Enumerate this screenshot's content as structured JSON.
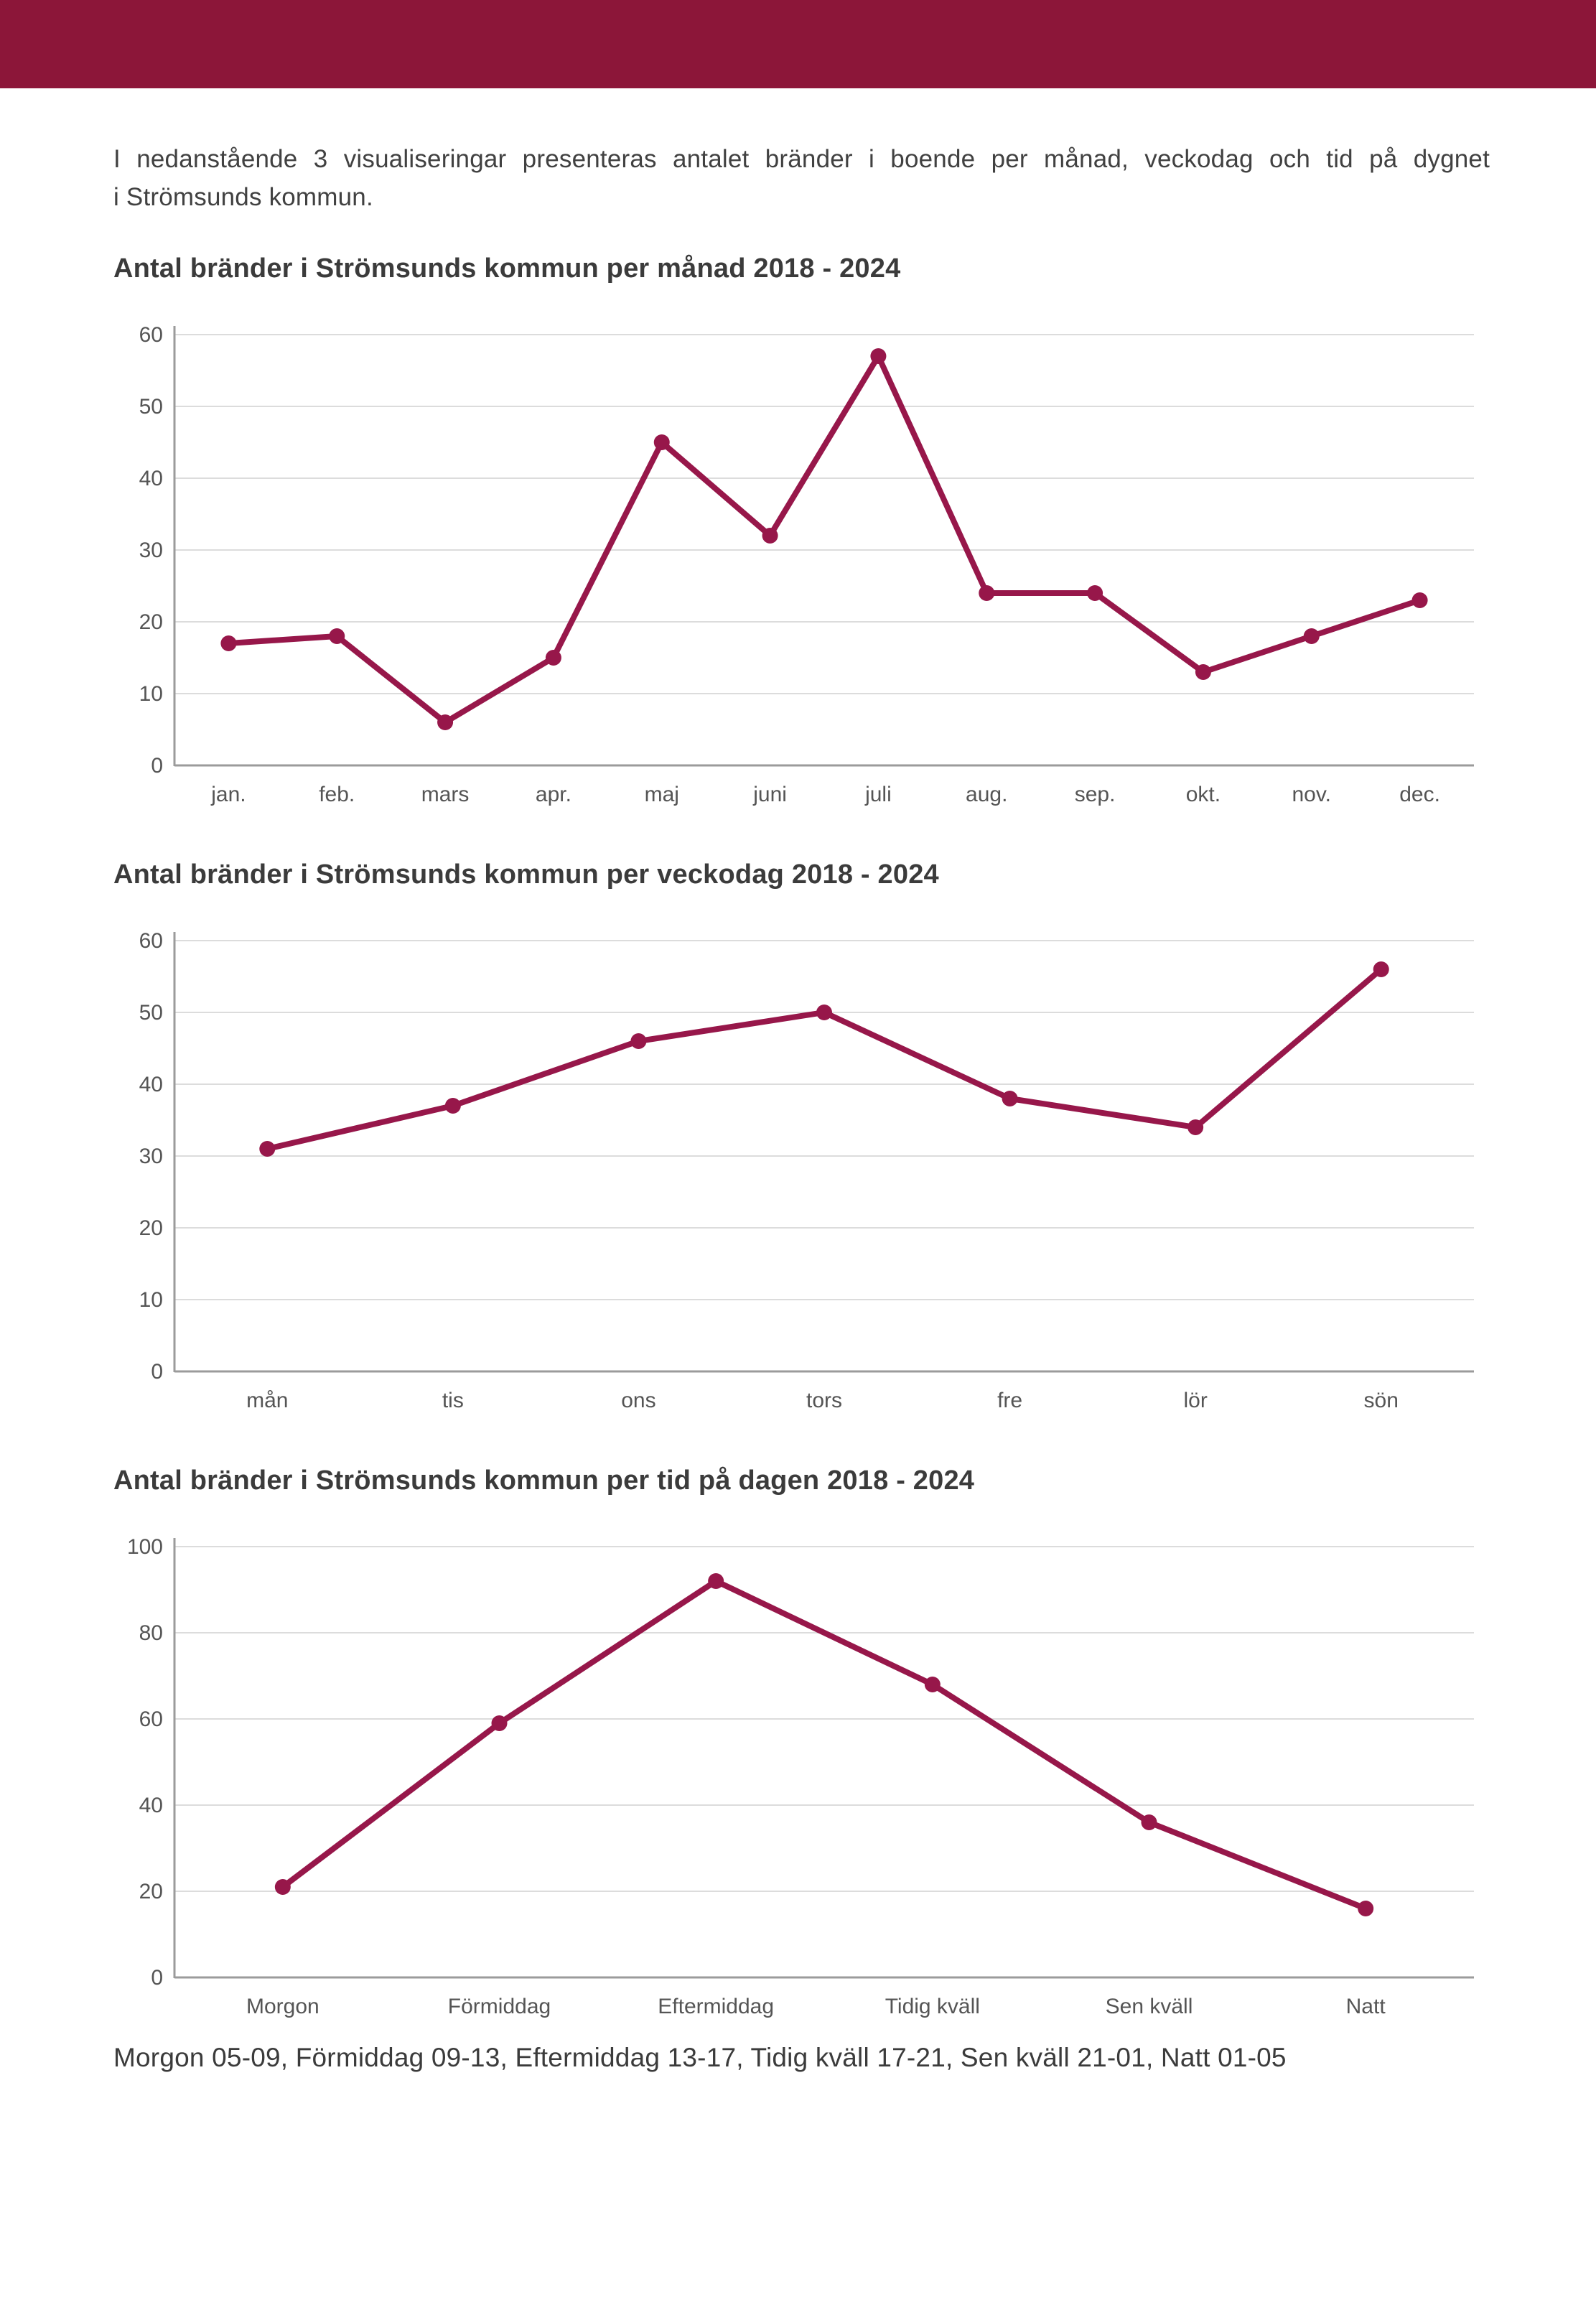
{
  "page": {
    "intro_line1": "I nedanstående 3 visualiseringar presenteras antalet bränder i boende per månad, veckodag och tid på dygnet",
    "intro_line2": "i Strömsunds kommun.",
    "footer": "Morgon 05-09, Förmiddag 09-13, Eftermiddag 13-17, Tidig kväll 17-21, Sen kväll 21-01, Natt 01-05"
  },
  "colors": {
    "header_bar": "#8C1639",
    "line": "#97174A",
    "grid": "#DCDCDC",
    "axis": "#9B9B9B",
    "text": "#3B3B3B",
    "tick_text": "#555555"
  },
  "chart_data": [
    {
      "type": "line",
      "title": "Antal bränder i Strömsunds kommun per månad 2018 - 2024",
      "categories": [
        "jan.",
        "feb.",
        "mars",
        "apr.",
        "maj",
        "juni",
        "juli",
        "aug.",
        "sep.",
        "okt.",
        "nov.",
        "dec."
      ],
      "values": [
        17,
        18,
        6,
        15,
        45,
        32,
        57,
        24,
        24,
        13,
        18,
        23
      ],
      "xlabel": "",
      "ylabel": "",
      "ylim": [
        0,
        60
      ],
      "ytick_step": 10,
      "grid": true,
      "legend": "none"
    },
    {
      "type": "line",
      "title": "Antal bränder i Strömsunds kommun per veckodag 2018 - 2024",
      "categories": [
        "mån",
        "tis",
        "ons",
        "tors",
        "fre",
        "lör",
        "sön"
      ],
      "values": [
        31,
        37,
        46,
        50,
        38,
        34,
        56
      ],
      "xlabel": "",
      "ylabel": "",
      "ylim": [
        0,
        60
      ],
      "ytick_step": 10,
      "grid": true,
      "legend": "none"
    },
    {
      "type": "line",
      "title": "Antal bränder i Strömsunds kommun per tid på dagen 2018 - 2024",
      "categories": [
        "Morgon",
        "Förmiddag",
        "Eftermiddag",
        "Tidig kväll",
        "Sen kväll",
        "Natt"
      ],
      "values": [
        21,
        59,
        92,
        68,
        36,
        16
      ],
      "xlabel": "",
      "ylabel": "",
      "ylim": [
        0,
        100
      ],
      "ytick_step": 20,
      "grid": true,
      "legend": "none"
    }
  ]
}
